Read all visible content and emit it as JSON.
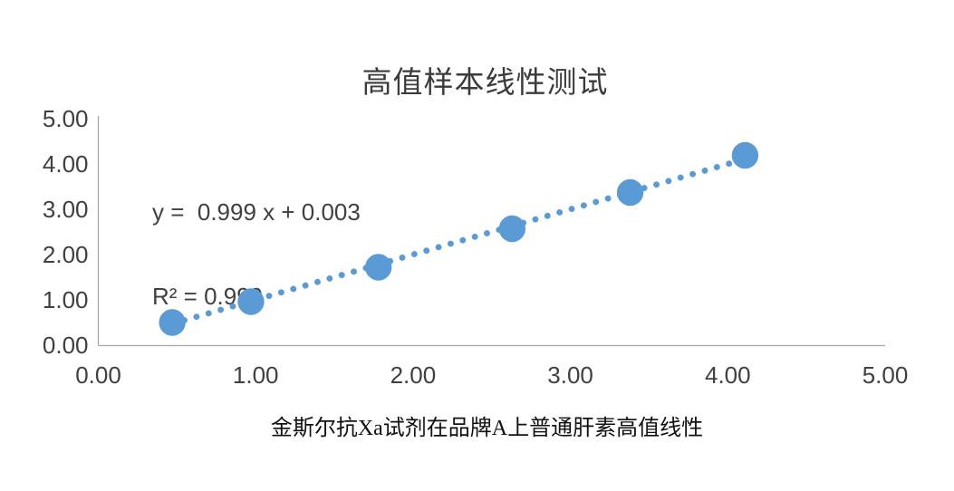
{
  "chart_data": {
    "type": "scatter",
    "title": "高值样本线性测试",
    "caption": "金斯尔抗Xa试剂在品牌A上普通肝素高值线性",
    "xlabel": "",
    "ylabel": "",
    "xlim": [
      0,
      5
    ],
    "ylim": [
      0,
      5
    ],
    "x_ticks": [
      "0.00",
      "1.00",
      "2.00",
      "3.00",
      "4.00",
      "5.00"
    ],
    "y_ticks": [
      "0.00",
      "1.00",
      "2.00",
      "3.00",
      "4.00",
      "5.00"
    ],
    "grid": false,
    "legend": false,
    "points": [
      {
        "x": 0.47,
        "y": 0.5
      },
      {
        "x": 0.97,
        "y": 0.96
      },
      {
        "x": 1.78,
        "y": 1.72
      },
      {
        "x": 2.63,
        "y": 2.57
      },
      {
        "x": 3.38,
        "y": 3.37
      },
      {
        "x": 4.11,
        "y": 4.19
      }
    ],
    "trendline": {
      "style": "dotted",
      "slope": 0.999,
      "intercept": 0.003,
      "x_start": 0.47,
      "x_end": 4.14,
      "equation_label": "y =  0.999 x + 0.003",
      "r_squared_label": "R² = 0.999"
    },
    "colors": {
      "marker": "#5B9BD5",
      "trendline": "#5B9BD5",
      "axis_line": "#A6A6A6",
      "tick_text": "#404040",
      "title_text": "#3B3B3B",
      "caption_text": "#111111"
    }
  }
}
